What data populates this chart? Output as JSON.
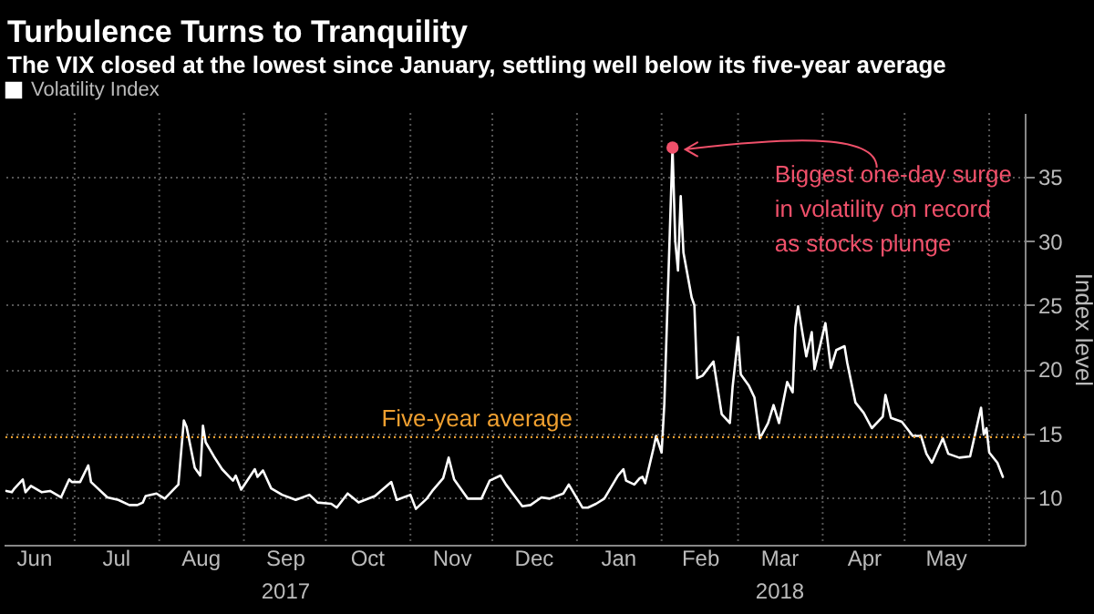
{
  "chart_data": {
    "type": "line",
    "title": "Turbulence Turns to Tranquility",
    "subtitle": "The VIX closed at the lowest since January, settling well below its five-year average",
    "ylabel": "Index level",
    "x": [
      "2017-06-06",
      "2017-06-08",
      "2017-06-09",
      "2017-06-12",
      "2017-06-13",
      "2017-06-15",
      "2017-06-19",
      "2017-06-22",
      "2017-06-26",
      "2017-06-29",
      "2017-06-30",
      "2017-07-03",
      "2017-07-06",
      "2017-07-07",
      "2017-07-13",
      "2017-07-17",
      "2017-07-21",
      "2017-07-24",
      "2017-07-26",
      "2017-07-27",
      "2017-07-31",
      "2017-08-03",
      "2017-08-08",
      "2017-08-10",
      "2017-08-11",
      "2017-08-14",
      "2017-08-16",
      "2017-08-17",
      "2017-08-18",
      "2017-08-21",
      "2017-08-24",
      "2017-08-28",
      "2017-08-29",
      "2017-08-31",
      "2017-09-05",
      "2017-09-06",
      "2017-09-08",
      "2017-09-11",
      "2017-09-15",
      "2017-09-20",
      "2017-09-25",
      "2017-09-28",
      "2017-10-03",
      "2017-10-05",
      "2017-10-09",
      "2017-10-13",
      "2017-10-19",
      "2017-10-25",
      "2017-10-27",
      "2017-11-01",
      "2017-11-03",
      "2017-11-07",
      "2017-11-09",
      "2017-11-13",
      "2017-11-15",
      "2017-11-17",
      "2017-11-22",
      "2017-11-27",
      "2017-11-30",
      "2017-12-04",
      "2017-12-06",
      "2017-12-12",
      "2017-12-15",
      "2017-12-19",
      "2017-12-22",
      "2017-12-27",
      "2017-12-29",
      "2018-01-03",
      "2018-01-05",
      "2018-01-08",
      "2018-01-11",
      "2018-01-16",
      "2018-01-18",
      "2018-01-19",
      "2018-01-22",
      "2018-01-24",
      "2018-01-25",
      "2018-01-26",
      "2018-01-29",
      "2018-01-30",
      "2018-02-01",
      "2018-02-02",
      "2018-02-05",
      "2018-02-06",
      "2018-02-07",
      "2018-02-08",
      "2018-02-09",
      "2018-02-12",
      "2018-02-13",
      "2018-02-14",
      "2018-02-16",
      "2018-02-20",
      "2018-02-23",
      "2018-02-26",
      "2018-02-27",
      "2018-03-01",
      "2018-03-02",
      "2018-03-05",
      "2018-03-07",
      "2018-03-09",
      "2018-03-12",
      "2018-03-14",
      "2018-03-16",
      "2018-03-19",
      "2018-03-21",
      "2018-03-22",
      "2018-03-23",
      "2018-03-26",
      "2018-03-28",
      "2018-03-29",
      "2018-04-02",
      "2018-04-04",
      "2018-04-06",
      "2018-04-09",
      "2018-04-10",
      "2018-04-13",
      "2018-04-16",
      "2018-04-19",
      "2018-04-23",
      "2018-04-24",
      "2018-04-26",
      "2018-04-30",
      "2018-05-04",
      "2018-05-07",
      "2018-05-09",
      "2018-05-11",
      "2018-05-15",
      "2018-05-17",
      "2018-05-21",
      "2018-05-25",
      "2018-05-29",
      "2018-05-30",
      "2018-05-31",
      "2018-06-01",
      "2018-06-04",
      "2018-06-06"
    ],
    "series": [
      {
        "name": "Volatility Index",
        "color": "#ffffff",
        "values": [
          10.5,
          10.4,
          10.7,
          11.4,
          10.4,
          10.9,
          10.4,
          10.5,
          10.0,
          11.4,
          11.2,
          11.2,
          12.5,
          11.2,
          10.0,
          9.8,
          9.4,
          9.4,
          9.6,
          10.1,
          10.3,
          9.9,
          11.0,
          16.0,
          15.5,
          12.3,
          11.7,
          15.6,
          14.3,
          13.2,
          12.2,
          11.3,
          11.7,
          10.6,
          12.2,
          11.6,
          12.1,
          10.7,
          10.2,
          9.8,
          10.2,
          9.6,
          9.5,
          9.2,
          10.3,
          9.6,
          10.1,
          11.2,
          9.8,
          10.2,
          9.1,
          9.9,
          10.5,
          11.5,
          13.1,
          11.4,
          9.9,
          9.9,
          11.3,
          11.7,
          11.0,
          9.3,
          9.4,
          10.0,
          9.9,
          10.3,
          11.0,
          9.2,
          9.2,
          9.5,
          9.9,
          11.7,
          12.2,
          11.3,
          11.0,
          11.5,
          11.6,
          11.1,
          13.8,
          14.8,
          13.5,
          17.3,
          37.3,
          30.0,
          27.7,
          33.5,
          29.1,
          25.6,
          25.0,
          19.3,
          19.5,
          20.6,
          16.5,
          15.8,
          18.6,
          22.5,
          19.6,
          18.7,
          17.8,
          14.6,
          15.8,
          17.2,
          15.8,
          19.0,
          18.2,
          23.3,
          24.9,
          21.0,
          22.9,
          20.0,
          23.6,
          20.1,
          21.5,
          21.8,
          20.5,
          17.4,
          16.6,
          15.4,
          16.3,
          18.0,
          16.2,
          15.9,
          14.8,
          14.8,
          13.4,
          12.7,
          14.6,
          13.4,
          13.1,
          13.2,
          17.0,
          14.9,
          15.4,
          13.5,
          12.7,
          11.6
        ]
      }
    ],
    "xlim": [
      "2017-06-05",
      "2018-06-14"
    ],
    "xticks": [
      {
        "value": "2017-06-16",
        "label": "Jun"
      },
      {
        "value": "2017-07-01",
        "label": null
      },
      {
        "value": "2017-07-16",
        "label": "Jul"
      },
      {
        "value": "2017-08-01",
        "label": null
      },
      {
        "value": "2017-08-16",
        "label": "Aug"
      },
      {
        "value": "2017-09-01",
        "label": null
      },
      {
        "value": "2017-09-16",
        "label": "Sep\n2017"
      },
      {
        "value": "2017-10-01",
        "label": null
      },
      {
        "value": "2017-10-16",
        "label": "Oct"
      },
      {
        "value": "2017-11-01",
        "label": null
      },
      {
        "value": "2017-11-16",
        "label": "Nov"
      },
      {
        "value": "2017-12-01",
        "label": null
      },
      {
        "value": "2017-12-16",
        "label": "Dec"
      },
      {
        "value": "2018-01-01",
        "label": null
      },
      {
        "value": "2018-01-16",
        "label": "Jan"
      },
      {
        "value": "2018-02-01",
        "label": null
      },
      {
        "value": "2018-02-15",
        "label": "Feb"
      },
      {
        "value": "2018-03-01",
        "label": null
      },
      {
        "value": "2018-03-16",
        "label": "Mar\n2018"
      },
      {
        "value": "2018-04-01",
        "label": null
      },
      {
        "value": "2018-04-16",
        "label": "Apr"
      },
      {
        "value": "2018-05-01",
        "label": null
      },
      {
        "value": "2018-05-16",
        "label": "May"
      },
      {
        "value": "2018-06-01",
        "label": null
      }
    ],
    "ylim": [
      6.3,
      40
    ],
    "yticks": [
      10,
      15,
      20,
      25,
      30,
      35
    ],
    "grid": true,
    "legend": "top left",
    "marker": "none",
    "ref_lines": [
      {
        "axis": "y",
        "value": 14.7,
        "label": "Five-year average",
        "color": "#f0a030",
        "line_style": "dotted"
      }
    ],
    "annotations": [
      {
        "text": "Biggest one-day surge\nin volatility on record\nas stocks plunge",
        "x": "2018-02-05",
        "y": 37.3
      }
    ]
  }
}
